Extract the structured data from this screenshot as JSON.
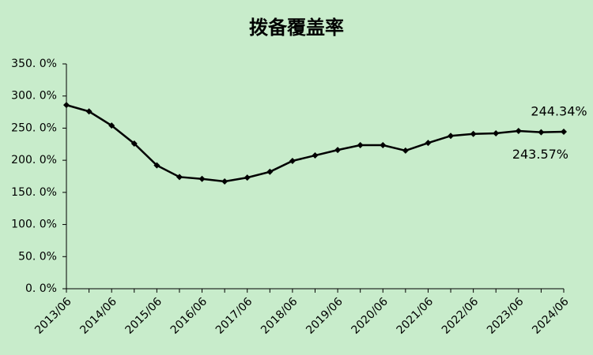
{
  "chart_data": {
    "type": "line",
    "title": "拨备覆盖率",
    "categories": [
      "2013/06",
      null,
      "2014/06",
      null,
      "2015/06",
      null,
      "2016/06",
      null,
      "2017/06",
      null,
      "2018/06",
      null,
      "2019/06",
      null,
      "2020/06",
      null,
      "2021/06",
      null,
      "2022/06",
      null,
      "2023/06",
      null,
      "2024/06"
    ],
    "values": [
      286,
      276,
      254,
      226,
      192,
      174,
      171,
      167,
      173,
      182,
      199,
      207.5,
      216,
      223.5,
      223.5,
      215,
      227,
      238,
      241,
      242,
      245.6,
      243.57,
      244.34
    ],
    "value_labels": [
      null,
      null,
      null,
      null,
      null,
      null,
      null,
      null,
      null,
      null,
      null,
      null,
      null,
      null,
      null,
      null,
      null,
      null,
      null,
      null,
      null,
      "243.57%",
      "244.34%"
    ],
    "color": "#000000",
    "ylim": [
      0,
      350
    ],
    "yticks": [
      {
        "value": 0,
        "label": "0. 0%"
      },
      {
        "value": 50,
        "label": "50. 0%"
      },
      {
        "value": 100,
        "label": "100. 0%"
      },
      {
        "value": 150,
        "label": "150. 0%"
      },
      {
        "value": 200,
        "label": "200. 0%"
      },
      {
        "value": 250,
        "label": "250. 0%"
      },
      {
        "value": 300,
        "label": "300. 0%"
      },
      {
        "value": 350,
        "label": "350. 0%"
      }
    ],
    "grid": false
  }
}
